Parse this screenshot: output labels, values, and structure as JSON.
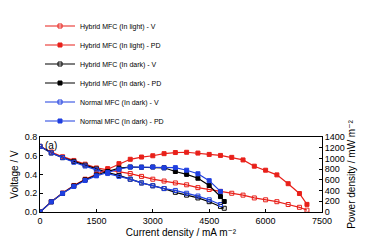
{
  "chart_data": {
    "type": "line",
    "annotations": [
      "(a)"
    ],
    "x_label": "Current density / mA m⁻²",
    "y_label": "Voltage / V",
    "y2_label": "Power density / mW m⁻²",
    "xlim": [
      0,
      7500
    ],
    "xticks": [
      0,
      1500,
      3000,
      4500,
      6000,
      7500
    ],
    "ylim": [
      0,
      0.8
    ],
    "yticks": [
      {
        "value": 0,
        "label": "0.0"
      },
      0.2,
      0.4,
      0.6,
      0.8
    ],
    "y2lim": [
      0,
      1400
    ],
    "y2ticks": [
      0,
      200,
      400,
      600,
      800,
      1000,
      1200,
      1400
    ],
    "grid": false,
    "legend": "top",
    "series": [
      {
        "name": "Hybrid MFC (In light) - V",
        "color": "#e8201a",
        "marker": "square-open",
        "line_style": "solid",
        "x": [
          0,
          300,
          600,
          900,
          1200,
          1500,
          1800,
          2100,
          2400,
          2700,
          3000,
          3300,
          3600,
          3900,
          4200,
          4500,
          4800,
          5100,
          5400,
          5700,
          6000,
          6300,
          6600,
          6900,
          7100
        ],
        "values": [
          0.7,
          0.64,
          0.59,
          0.55,
          0.51,
          0.47,
          0.45,
          0.43,
          0.41,
          0.38,
          0.35,
          0.33,
          0.31,
          0.29,
          0.26,
          0.24,
          0.22,
          0.2,
          0.18,
          0.15,
          0.13,
          0.11,
          0.08,
          0.05,
          0.02
        ]
      },
      {
        "name": "Hybrid MFC (In light) - PD",
        "color": "#e8201a",
        "marker": "square",
        "line_style": "solid",
        "axis": "y2",
        "x": [
          0,
          300,
          600,
          900,
          1200,
          1500,
          1800,
          2100,
          2400,
          2700,
          3000,
          3300,
          3600,
          3900,
          4200,
          4500,
          4800,
          5100,
          5400,
          5700,
          6000,
          6300,
          6600,
          6900,
          7100
        ],
        "values": [
          0,
          192,
          354,
          495,
          612,
          705,
          810,
          903,
          984,
          1026,
          1050,
          1089,
          1110,
          1115,
          1100,
          1075,
          1056,
          1020,
          972,
          855,
          780,
          693,
          528,
          345,
          142
        ]
      },
      {
        "name": "Hybrid MFC (In dark) - V",
        "color": "#000000",
        "marker": "square-open",
        "line_style": "solid",
        "x": [
          0,
          300,
          600,
          900,
          1200,
          1500,
          1800,
          2100,
          2400,
          2700,
          3000,
          3300,
          3600,
          3900,
          4200,
          4500,
          4800,
          4900
        ],
        "values": [
          0.7,
          0.63,
          0.58,
          0.54,
          0.5,
          0.46,
          0.42,
          0.39,
          0.35,
          0.31,
          0.28,
          0.25,
          0.21,
          0.18,
          0.15,
          0.11,
          0.06,
          0.04
        ]
      },
      {
        "name": "Hybrid MFC (In dark) - PD",
        "color": "#000000",
        "marker": "square",
        "line_style": "solid",
        "axis": "y2",
        "x": [
          0,
          300,
          600,
          900,
          1200,
          1500,
          1800,
          2100,
          2400,
          2700,
          3000,
          3300,
          3600,
          3900,
          4200,
          4500,
          4800,
          4900
        ],
        "values": [
          0,
          189,
          348,
          486,
          600,
          690,
          756,
          819,
          840,
          837,
          840,
          825,
          756,
          702,
          630,
          495,
          288,
          196
        ]
      },
      {
        "name": "Normal MFC (In dark) - V",
        "color": "#1f3fe0",
        "marker": "square-open",
        "line_style": "solid",
        "x": [
          0,
          300,
          600,
          900,
          1200,
          1500,
          1800,
          2100,
          2400,
          2700,
          3000,
          3300,
          3600,
          3900,
          4200,
          4500,
          4800
        ],
        "values": [
          0.7,
          0.63,
          0.58,
          0.53,
          0.49,
          0.45,
          0.41,
          0.38,
          0.35,
          0.31,
          0.28,
          0.25,
          0.23,
          0.2,
          0.17,
          0.13,
          0.08
        ]
      },
      {
        "name": "Normal MFC (In dark) - PD",
        "color": "#1f3fe0",
        "marker": "square",
        "line_style": "solid",
        "axis": "y2",
        "x": [
          0,
          300,
          600,
          900,
          1200,
          1500,
          1800,
          2100,
          2400,
          2700,
          3000,
          3300,
          3600,
          3900,
          4200,
          4500,
          4800
        ],
        "values": [
          0,
          189,
          348,
          477,
          588,
          675,
          738,
          798,
          840,
          837,
          840,
          825,
          828,
          780,
          714,
          585,
          384
        ]
      }
    ]
  }
}
